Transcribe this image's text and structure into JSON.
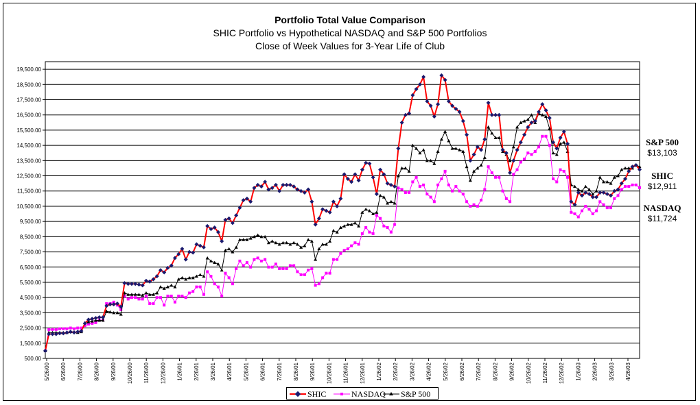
{
  "chart_data": {
    "type": "line",
    "title": "Portfolio Total Value Comparison",
    "subtitle": "SHIC Portfolio vs Hypothetical NASDAQ and S&P 500 Portfolios",
    "subtitle2": "Close of Week Values for 3-Year Life of Club",
    "ylim": [
      500,
      20000
    ],
    "ytick_values": [
      500,
      1500,
      2500,
      3500,
      4500,
      5500,
      6500,
      7500,
      8500,
      9500,
      10500,
      11500,
      12500,
      13500,
      14500,
      15500,
      16500,
      17500,
      18500,
      19500
    ],
    "ytick_labels": [
      "500.00",
      "1,500.00",
      "2,500.00",
      "3,500.00",
      "4,500.00",
      "5,500.00",
      "6,500.00",
      "7,500.00",
      "8,500.00",
      "9,500.00",
      "10,500.00",
      "11,500.00",
      "12,500.00",
      "13,500.00",
      "14,500.00",
      "15,500.00",
      "16,500.00",
      "17,500.00",
      "18,500.00",
      "19,500.00"
    ],
    "xtick_labels": [
      "5/26/00",
      "6/26/00",
      "7/26/00",
      "8/26/00",
      "9/26/00",
      "10/26/00",
      "11/26/00",
      "12/26/00",
      "1/26/01",
      "2/26/01",
      "3/26/01",
      "4/26/01",
      "5/26/01",
      "6/26/01",
      "7/26/01",
      "8/26/01",
      "9/26/01",
      "10/26/01",
      "11/26/01",
      "12/26/01",
      "1/26/02",
      "2/26/02",
      "3/26/02",
      "4/26/02",
      "5/26/02",
      "6/26/02",
      "7/26/02",
      "8/26/02",
      "9/26/02",
      "10/26/02",
      "11/26/02",
      "12/26/02",
      "1/26/03",
      "2/26/03",
      "3/26/03",
      "4/26/03"
    ],
    "grid": true,
    "legend_position": "bottom",
    "series": [
      {
        "name": "SHIC",
        "color": "#ff0000",
        "marker_color": "#1a1a6e",
        "values": [
          1000,
          2100,
          2100,
          2100,
          2150,
          2150,
          2200,
          2250,
          2200,
          2250,
          2300,
          2800,
          3050,
          3100,
          3150,
          3200,
          3200,
          3950,
          4050,
          4050,
          4100,
          3900,
          5450,
          5400,
          5400,
          5400,
          5350,
          5300,
          5600,
          5550,
          5700,
          5900,
          6300,
          6150,
          6450,
          6600,
          7100,
          7350,
          7700,
          7000,
          7500,
          7450,
          8000,
          7900,
          7800,
          9200,
          9000,
          9100,
          8800,
          8200,
          9600,
          9700,
          9400,
          9900,
          10400,
          10900,
          11000,
          10800,
          11700,
          11900,
          11800,
          12100,
          11600,
          11700,
          11900,
          11500,
          11900,
          11900,
          11900,
          11800,
          11600,
          11500,
          11400,
          11600,
          10800,
          9300,
          9700,
          10300,
          10200,
          10100,
          10800,
          10500,
          11000,
          12600,
          12300,
          12100,
          12600,
          12200,
          12900,
          13350,
          13300,
          12400,
          11300,
          12900,
          12600,
          12000,
          11900,
          11800,
          14300,
          16000,
          16500,
          16600,
          17800,
          18200,
          18500,
          19000,
          17400,
          17100,
          16400,
          17200,
          19100,
          18800,
          17400,
          17100,
          16900,
          16700,
          16100,
          15200,
          13500,
          13900,
          14400,
          14200,
          14900,
          17300,
          16500,
          16500,
          16500,
          14200,
          14000,
          12700,
          13500,
          14200,
          14700,
          15200,
          15700,
          16000,
          16100,
          16700,
          17200,
          16800,
          16300,
          14700,
          14300,
          15000,
          15400,
          14600,
          10800,
          10600,
          11400,
          11200,
          11400,
          11300,
          11100,
          11100,
          11400,
          11400,
          11300,
          11200,
          11500,
          11600,
          12000,
          12300,
          12800,
          13100,
          13200,
          12911
        ]
      },
      {
        "name": "NASDAQ",
        "color": "#ff00ff",
        "marker_color": "#ff00ff",
        "values": [
          1000,
          2400,
          2400,
          2400,
          2450,
          2450,
          2450,
          2500,
          2450,
          2500,
          2500,
          2650,
          2750,
          2800,
          2850,
          3000,
          3000,
          4100,
          4100,
          4200,
          4000,
          3700,
          4600,
          4400,
          4500,
          4500,
          4400,
          4400,
          4600,
          4100,
          4100,
          4500,
          4500,
          4000,
          4600,
          4600,
          4200,
          4600,
          4600,
          4500,
          4800,
          4900,
          5200,
          5200,
          4700,
          6200,
          5900,
          5400,
          5200,
          4600,
          6100,
          5800,
          5400,
          6400,
          6900,
          6600,
          6800,
          6500,
          7000,
          7100,
          6900,
          7000,
          6500,
          6500,
          6700,
          6400,
          6400,
          6400,
          6600,
          6600,
          6200,
          6000,
          6000,
          6300,
          6400,
          5300,
          5400,
          5800,
          6100,
          6100,
          7000,
          7000,
          7400,
          7600,
          7700,
          7900,
          8100,
          8000,
          8700,
          9100,
          8800,
          8700,
          9900,
          9700,
          9200,
          9100,
          8800,
          9300,
          11700,
          11600,
          11400,
          11400,
          12100,
          12400,
          11800,
          11900,
          11300,
          11100,
          10800,
          11900,
          12300,
          12800,
          11900,
          11500,
          11800,
          11500,
          11300,
          10800,
          10500,
          10600,
          10500,
          10900,
          11600,
          13100,
          12700,
          12400,
          12400,
          11500,
          11000,
          10800,
          12600,
          12900,
          13400,
          13600,
          14000,
          13900,
          14100,
          14400,
          15100,
          15100,
          14500,
          12300,
          12100,
          12900,
          12800,
          12400,
          10100,
          10000,
          9800,
          10200,
          10500,
          10300,
          10000,
          10200,
          10800,
          10600,
          10400,
          10400,
          11000,
          11200,
          11600,
          11800,
          11800,
          11900,
          11900,
          11724
        ]
      },
      {
        "name": "S&P 500",
        "color": "#000000",
        "marker_color": "#000000",
        "values": [
          1000,
          2200,
          2200,
          2200,
          2200,
          2200,
          2200,
          2250,
          2250,
          2200,
          2250,
          2850,
          2900,
          2950,
          3000,
          3000,
          3000,
          3600,
          3550,
          3500,
          3500,
          3400,
          4800,
          4700,
          4700,
          4700,
          4700,
          4650,
          4800,
          4700,
          4700,
          4800,
          5200,
          5100,
          5200,
          5300,
          5200,
          5700,
          5800,
          5700,
          5800,
          5800,
          5900,
          6000,
          5900,
          7100,
          6900,
          6800,
          6700,
          6300,
          7600,
          7700,
          7500,
          7800,
          8300,
          8300,
          8300,
          8400,
          8500,
          8600,
          8500,
          8500,
          8100,
          8200,
          8100,
          8000,
          8100,
          8100,
          8000,
          8100,
          8000,
          7800,
          7900,
          8300,
          8200,
          7000,
          7700,
          8000,
          8000,
          8200,
          8900,
          8800,
          9100,
          9200,
          9300,
          9300,
          9400,
          9200,
          10100,
          10300,
          10200,
          10000,
          10100,
          11200,
          11100,
          10700,
          10800,
          10700,
          12500,
          13000,
          13000,
          12800,
          14500,
          14300,
          14000,
          14200,
          13500,
          13500,
          13300,
          14100,
          14900,
          15400,
          14800,
          14300,
          14300,
          14200,
          14100,
          13100,
          12200,
          12800,
          13000,
          13200,
          13700,
          15700,
          15300,
          15000,
          15000,
          14100,
          13900,
          13500,
          14400,
          15700,
          16000,
          16100,
          16200,
          16500,
          16000,
          16600,
          16500,
          16400,
          15600,
          14000,
          13900,
          14600,
          14700,
          14100,
          11900,
          11800,
          11600,
          11500,
          11800,
          11600,
          11300,
          11500,
          12400,
          12100,
          12100,
          12000,
          12400,
          12500,
          12900,
          13000,
          13000,
          13000,
          13200,
          13103
        ]
      }
    ],
    "annotations": [
      {
        "name": "S&P 500",
        "value": "$13,103"
      },
      {
        "name": "SHIC",
        "value": "$12,911"
      },
      {
        "name": "NASDAQ",
        "value": "$11,724"
      }
    ],
    "legend": [
      "SHIC",
      "NASDAQ",
      "S&P 500"
    ]
  }
}
